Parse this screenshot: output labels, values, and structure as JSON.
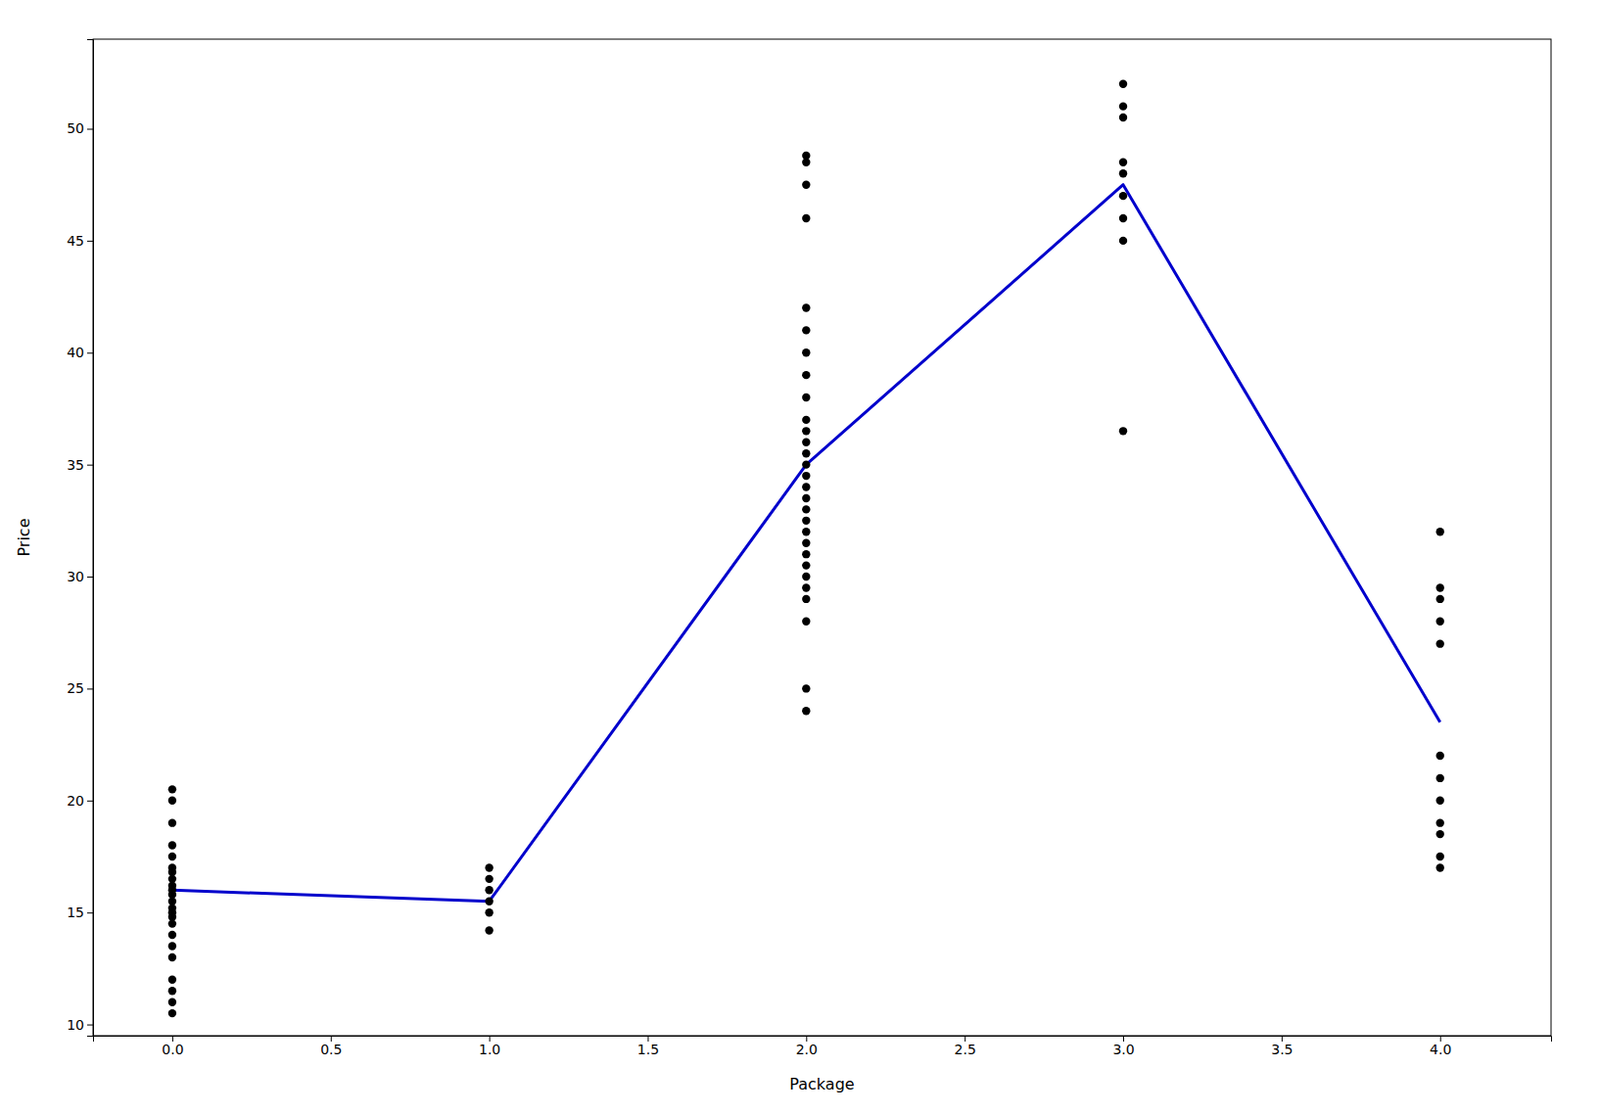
{
  "chart_data": {
    "type": "scatter",
    "xlabel": "Package",
    "ylabel": "Price",
    "series": [
      {
        "type": "scatter",
        "color": "#000000",
        "x": [
          0,
          0,
          0,
          0,
          0,
          0,
          0,
          0,
          0,
          0,
          0,
          0,
          0,
          0,
          0,
          0,
          0,
          0,
          0,
          0,
          0,
          0,
          0,
          1,
          1,
          1,
          1,
          1,
          1,
          2,
          2,
          2,
          2,
          2,
          2,
          2,
          2,
          2,
          2,
          2,
          2,
          2,
          2,
          2,
          2,
          2,
          2,
          2,
          2,
          2,
          2,
          2,
          2,
          2,
          2,
          2,
          2,
          2,
          3,
          3,
          3,
          3,
          3,
          3,
          3,
          3,
          3,
          4,
          4,
          4,
          4,
          4,
          4,
          4,
          4,
          4,
          4,
          4,
          4
        ],
        "values": [
          10.5,
          11.0,
          11.5,
          12.0,
          13.0,
          13.5,
          14.0,
          14.5,
          14.8,
          15.0,
          15.2,
          15.5,
          15.8,
          16.0,
          16.2,
          16.5,
          16.8,
          17.0,
          17.5,
          18.0,
          19.0,
          20.0,
          20.5,
          14.2,
          15.0,
          15.5,
          16.0,
          16.5,
          17.0,
          24.0,
          25.0,
          28.0,
          29.0,
          29.5,
          30.0,
          30.5,
          31.0,
          31.5,
          32.0,
          32.5,
          33.0,
          33.5,
          34.0,
          34.5,
          35.0,
          35.5,
          36.0,
          36.5,
          37.0,
          38.0,
          39.0,
          40.0,
          41.0,
          42.0,
          46.0,
          47.5,
          48.5,
          48.8,
          36.5,
          45.0,
          46.0,
          47.0,
          48.0,
          48.5,
          50.5,
          51.0,
          52.0,
          17.0,
          17.5,
          18.5,
          19.0,
          20.0,
          21.0,
          22.0,
          27.0,
          28.0,
          29.0,
          29.5,
          32.0
        ]
      },
      {
        "type": "line",
        "color": "#0000cc",
        "x": [
          0,
          1,
          2,
          3,
          4
        ],
        "values": [
          16.0,
          15.5,
          35.0,
          47.5,
          23.5
        ]
      }
    ],
    "xlim": [
      -0.25,
      4.35
    ],
    "ylim": [
      9.5,
      54
    ],
    "xticks": [
      {
        "value": 0.0,
        "label": "0.0"
      },
      0.5,
      {
        "value": 1.0,
        "label": "1.0"
      },
      1.5,
      {
        "value": 2.0,
        "label": "2.0"
      },
      2.5,
      {
        "value": 3.0,
        "label": "3.0"
      },
      3.5,
      {
        "value": 4.0,
        "label": "4.0"
      }
    ],
    "yticks": [
      10,
      15,
      20,
      25,
      30,
      35,
      40,
      45,
      50
    ]
  }
}
